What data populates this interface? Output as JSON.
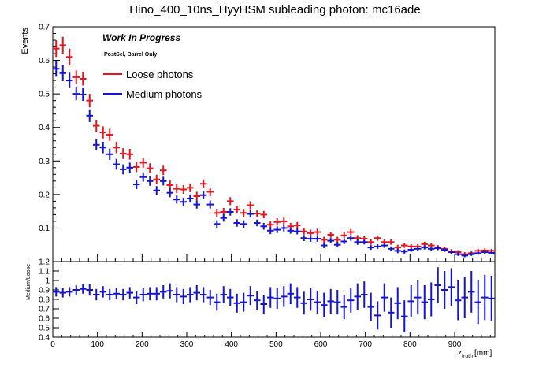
{
  "chart_data": {
    "title": "Hino_400_10ns_HyyHSM subleading photon: mc16ade",
    "xlabel_main": "z",
    "xlabel_sub": "truth",
    "xlabel_unit": "[mm]",
    "ylabel": "Events",
    "ratio_ylabel": "Medium/Loose",
    "annotation_1": "Work In Progress",
    "annotation_2": "PostSel, Barrel Only",
    "colors": {
      "loose": "#e8141e",
      "medium": "#1414d2",
      "frame": "#000000"
    },
    "top_panel": {
      "type": "scatter",
      "xlim": [
        0,
        990
      ],
      "ylim": [
        0,
        0.7
      ],
      "yticks": [
        0.1,
        0.2,
        0.3,
        0.4,
        0.5,
        0.6,
        0.7
      ],
      "ytick_labels": [
        "0.1",
        "0.2",
        "0.3",
        "0.4",
        "0.5",
        "0.6",
        "0.7"
      ],
      "bin_width": 15,
      "x": [
        7.5,
        22.5,
        37.5,
        52.5,
        67.5,
        82.5,
        97.5,
        112.5,
        127.5,
        142.5,
        157.5,
        172.5,
        187.5,
        202.5,
        217.5,
        232.5,
        247.5,
        262.5,
        277.5,
        292.5,
        307.5,
        322.5,
        337.5,
        352.5,
        367.5,
        382.5,
        397.5,
        412.5,
        427.5,
        442.5,
        457.5,
        472.5,
        487.5,
        502.5,
        517.5,
        532.5,
        547.5,
        562.5,
        577.5,
        592.5,
        607.5,
        622.5,
        637.5,
        652.5,
        667.5,
        682.5,
        697.5,
        712.5,
        727.5,
        742.5,
        757.5,
        772.5,
        787.5,
        802.5,
        817.5,
        832.5,
        847.5,
        862.5,
        877.5,
        892.5,
        907.5,
        922.5,
        937.5,
        952.5,
        967.5,
        982.5
      ],
      "series": [
        {
          "name": "Loose photons",
          "values": [
            0.635,
            0.645,
            0.61,
            0.55,
            0.545,
            0.48,
            0.405,
            0.385,
            0.378,
            0.34,
            0.322,
            0.32,
            0.282,
            0.295,
            0.278,
            0.245,
            0.272,
            0.228,
            0.217,
            0.215,
            0.22,
            0.195,
            0.232,
            0.208,
            0.145,
            0.148,
            0.18,
            0.155,
            0.145,
            0.168,
            0.143,
            0.14,
            0.11,
            0.118,
            0.12,
            0.105,
            0.108,
            0.09,
            0.085,
            0.088,
            0.065,
            0.08,
            0.065,
            0.078,
            0.088,
            0.07,
            0.068,
            0.058,
            0.07,
            0.058,
            0.058,
            0.042,
            0.048,
            0.045,
            0.045,
            0.052,
            0.048,
            0.042,
            0.038,
            0.03,
            0.028,
            0.022,
            0.025,
            0.032,
            0.033,
            0.032
          ],
          "errors": [
            0.025,
            0.025,
            0.025,
            0.02,
            0.02,
            0.02,
            0.018,
            0.018,
            0.018,
            0.017,
            0.016,
            0.016,
            0.015,
            0.015,
            0.015,
            0.014,
            0.014,
            0.014,
            0.013,
            0.013,
            0.013,
            0.013,
            0.013,
            0.013,
            0.012,
            0.012,
            0.012,
            0.012,
            0.012,
            0.012,
            0.011,
            0.011,
            0.011,
            0.011,
            0.011,
            0.01,
            0.01,
            0.01,
            0.01,
            0.01,
            0.009,
            0.009,
            0.009,
            0.009,
            0.009,
            0.009,
            0.008,
            0.008,
            0.008,
            0.008,
            0.008,
            0.008,
            0.007,
            0.007,
            0.007,
            0.007,
            0.007,
            0.007,
            0.007,
            0.007,
            0.006,
            0.006,
            0.006,
            0.006,
            0.006,
            0.006
          ]
        },
        {
          "name": "Medium photons",
          "values": [
            0.575,
            0.562,
            0.54,
            0.5,
            0.498,
            0.435,
            0.348,
            0.34,
            0.32,
            0.29,
            0.275,
            0.28,
            0.23,
            0.252,
            0.24,
            0.212,
            0.24,
            0.205,
            0.185,
            0.178,
            0.188,
            0.17,
            0.198,
            0.17,
            0.112,
            0.13,
            0.148,
            0.115,
            0.112,
            0.142,
            0.115,
            0.105,
            0.092,
            0.095,
            0.1,
            0.092,
            0.09,
            0.07,
            0.068,
            0.068,
            0.048,
            0.062,
            0.05,
            0.06,
            0.07,
            0.058,
            0.058,
            0.042,
            0.045,
            0.048,
            0.038,
            0.032,
            0.03,
            0.035,
            0.038,
            0.042,
            0.038,
            0.04,
            0.035,
            0.028,
            0.022,
            0.018,
            0.022,
            0.025,
            0.028,
            0.026
          ],
          "errors": [
            0.024,
            0.024,
            0.023,
            0.019,
            0.019,
            0.019,
            0.017,
            0.017,
            0.017,
            0.016,
            0.015,
            0.015,
            0.014,
            0.014,
            0.014,
            0.013,
            0.013,
            0.013,
            0.012,
            0.012,
            0.012,
            0.012,
            0.012,
            0.012,
            0.011,
            0.011,
            0.011,
            0.011,
            0.011,
            0.011,
            0.01,
            0.01,
            0.01,
            0.01,
            0.01,
            0.009,
            0.009,
            0.009,
            0.009,
            0.009,
            0.008,
            0.008,
            0.008,
            0.008,
            0.008,
            0.008,
            0.007,
            0.007,
            0.007,
            0.007,
            0.007,
            0.007,
            0.006,
            0.006,
            0.006,
            0.006,
            0.006,
            0.006,
            0.006,
            0.006,
            0.005,
            0.005,
            0.005,
            0.005,
            0.005,
            0.005
          ]
        }
      ]
    },
    "ratio_panel": {
      "type": "scatter",
      "xlim": [
        0,
        990
      ],
      "ylim": [
        0.4,
        1.2
      ],
      "yticks": [
        0.4,
        0.5,
        0.6,
        0.7,
        0.8,
        0.9,
        1,
        1.1,
        1.2
      ],
      "ytick_labels": [
        "0.4",
        "0.5",
        "0.6",
        "0.7",
        "0.8",
        "0.9",
        "1",
        "1.1",
        "1.2"
      ],
      "series": [
        {
          "name": "",
          "values": [
            0.88,
            0.87,
            0.88,
            0.9,
            0.91,
            0.9,
            0.85,
            0.88,
            0.85,
            0.86,
            0.85,
            0.87,
            0.82,
            0.85,
            0.86,
            0.86,
            0.88,
            0.89,
            0.85,
            0.83,
            0.85,
            0.87,
            0.85,
            0.82,
            0.77,
            0.85,
            0.82,
            0.76,
            0.77,
            0.84,
            0.79,
            0.75,
            0.82,
            0.81,
            0.83,
            0.86,
            0.82,
            0.76,
            0.8,
            0.77,
            0.74,
            0.78,
            0.77,
            0.72,
            0.79,
            0.83,
            0.85,
            0.72,
            0.63,
            0.82,
            0.66,
            0.76,
            0.62,
            0.78,
            0.82,
            0.77,
            0.8,
            0.95,
            0.9,
            0.93,
            0.79,
            0.82,
            0.88,
            0.77,
            0.82,
            0.81
          ],
          "errors": [
            0.05,
            0.05,
            0.05,
            0.05,
            0.05,
            0.06,
            0.06,
            0.06,
            0.06,
            0.06,
            0.06,
            0.06,
            0.07,
            0.07,
            0.07,
            0.07,
            0.07,
            0.08,
            0.08,
            0.08,
            0.08,
            0.08,
            0.08,
            0.08,
            0.09,
            0.09,
            0.09,
            0.1,
            0.1,
            0.1,
            0.1,
            0.1,
            0.11,
            0.11,
            0.11,
            0.11,
            0.11,
            0.12,
            0.12,
            0.12,
            0.13,
            0.13,
            0.13,
            0.13,
            0.13,
            0.14,
            0.14,
            0.15,
            0.15,
            0.15,
            0.16,
            0.17,
            0.17,
            0.17,
            0.18,
            0.18,
            0.18,
            0.19,
            0.2,
            0.2,
            0.21,
            0.22,
            0.22,
            0.23,
            0.24,
            0.24
          ]
        }
      ]
    },
    "xticks": [
      0,
      100,
      200,
      300,
      400,
      500,
      600,
      700,
      800,
      900
    ],
    "xtick_labels": [
      "0",
      "100",
      "200",
      "300",
      "400",
      "500",
      "600",
      "700",
      "800",
      "900"
    ]
  }
}
